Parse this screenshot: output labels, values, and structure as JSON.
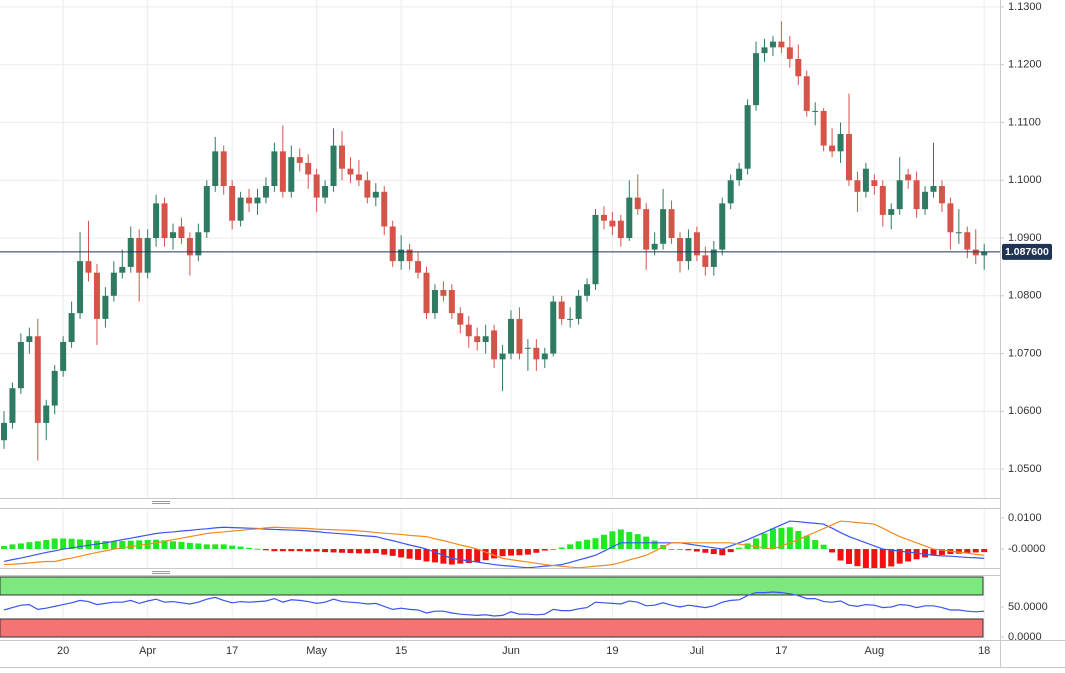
{
  "chart_data": [
    {
      "type": "candlestick",
      "categories": [
        null,
        null,
        null,
        null,
        null,
        null,
        null,
        "20",
        null,
        null,
        null,
        null,
        null,
        null,
        null,
        null,
        null,
        "Apr",
        null,
        null,
        null,
        null,
        null,
        null,
        null,
        null,
        null,
        "17",
        null,
        null,
        null,
        null,
        null,
        null,
        null,
        null,
        null,
        "May",
        null,
        null,
        null,
        null,
        null,
        null,
        null,
        null,
        null,
        "15",
        null,
        null,
        null,
        null,
        null,
        null,
        null,
        null,
        null,
        null,
        null,
        null,
        "Jun",
        null,
        null,
        null,
        null,
        null,
        null,
        null,
        null,
        null,
        null,
        null,
        "19",
        null,
        null,
        null,
        null,
        null,
        null,
        null,
        null,
        null,
        "Jul",
        null,
        null,
        null,
        null,
        null,
        null,
        null,
        null,
        null,
        "17",
        null,
        null,
        null,
        null,
        null,
        null,
        null,
        null,
        null,
        null,
        "Aug",
        null,
        null,
        null,
        null,
        null,
        null,
        null,
        null,
        null,
        null,
        null,
        null,
        "18"
      ],
      "open": [
        1.055,
        1.058,
        1.064,
        1.072,
        1.073,
        1.058,
        1.061,
        1.067,
        1.072,
        1.077,
        1.086,
        1.084,
        1.076,
        1.08,
        1.084,
        1.085,
        1.09,
        1.084,
        1.09,
        1.096,
        1.09,
        1.092,
        1.09,
        1.087,
        1.091,
        1.099,
        1.105,
        1.099,
        1.093,
        1.097,
        1.096,
        1.097,
        1.099,
        1.105,
        1.098,
        1.104,
        1.103,
        1.101,
        1.097,
        1.099,
        1.106,
        1.102,
        1.101,
        1.1,
        1.097,
        1.098,
        1.092,
        1.086,
        1.088,
        1.086,
        1.084,
        1.077,
        1.081,
        1.081,
        1.077,
        1.075,
        1.073,
        1.072,
        1.074,
        1.069,
        1.07,
        1.076,
        1.071,
        1.071,
        1.069,
        1.07,
        1.079,
        1.076,
        1.076,
        1.08,
        1.082,
        1.094,
        1.093,
        1.093,
        1.09,
        1.097,
        1.095,
        1.088,
        1.089,
        1.095,
        1.09,
        1.086,
        1.091,
        1.087,
        1.085,
        1.088,
        1.096,
        1.1,
        1.102,
        1.113,
        1.122,
        1.123,
        1.124,
        1.123,
        1.121,
        1.118,
        1.112,
        1.112,
        1.106,
        1.105,
        1.108,
        1.1,
        1.098,
        1.1,
        1.099,
        1.094,
        1.095,
        1.101,
        1.1,
        1.095,
        1.098,
        1.099,
        1.096,
        1.091,
        1.091,
        1.088,
        1.087
      ],
      "high": [
        1.06,
        1.065,
        1.0735,
        1.0745,
        1.076,
        1.062,
        1.068,
        1.073,
        1.079,
        1.091,
        1.093,
        1.0855,
        1.0815,
        1.086,
        1.088,
        1.092,
        1.0915,
        1.0915,
        1.0975,
        1.097,
        1.0925,
        1.0935,
        1.091,
        1.0925,
        1.1,
        1.1075,
        1.106,
        1.1,
        1.098,
        1.0985,
        1.0985,
        1.1005,
        1.1065,
        1.1095,
        1.106,
        1.1055,
        1.1045,
        1.102,
        1.1,
        1.109,
        1.1085,
        1.104,
        1.1035,
        1.1015,
        1.0995,
        1.099,
        1.093,
        1.0905,
        1.089,
        1.0875,
        1.085,
        1.082,
        1.0825,
        1.082,
        1.078,
        1.0765,
        1.0745,
        1.075,
        1.075,
        1.0715,
        1.0775,
        1.078,
        1.0725,
        1.0725,
        1.071,
        1.08,
        1.08,
        1.078,
        1.081,
        1.083,
        1.095,
        1.0955,
        1.0945,
        1.094,
        1.1,
        1.101,
        1.096,
        1.091,
        1.0985,
        1.0965,
        1.091,
        1.0915,
        1.092,
        1.0885,
        1.0895,
        1.097,
        1.101,
        1.103,
        1.114,
        1.124,
        1.1245,
        1.125,
        1.1275,
        1.125,
        1.1235,
        1.119,
        1.1135,
        1.1125,
        1.109,
        1.11,
        1.115,
        1.1015,
        1.103,
        1.101,
        1.1,
        1.096,
        1.104,
        1.102,
        1.1015,
        1.099,
        1.1065,
        1.1,
        1.097,
        1.095,
        1.092,
        1.0915,
        1.089
      ],
      "low": [
        1.0535,
        1.057,
        1.063,
        1.07,
        1.0515,
        1.055,
        1.0595,
        1.066,
        1.071,
        1.076,
        1.0825,
        1.0715,
        1.0745,
        1.079,
        1.083,
        1.084,
        1.079,
        1.083,
        1.0885,
        1.0885,
        1.088,
        1.089,
        1.0835,
        1.086,
        1.09,
        1.098,
        1.0975,
        1.0915,
        1.092,
        1.0945,
        1.094,
        1.096,
        1.098,
        1.097,
        1.097,
        1.1015,
        1.0985,
        1.0945,
        1.096,
        1.098,
        1.1,
        1.0995,
        1.099,
        1.096,
        1.0955,
        1.0905,
        1.085,
        1.0845,
        1.0845,
        1.083,
        1.076,
        1.076,
        1.079,
        1.076,
        1.0735,
        1.071,
        1.0705,
        1.07,
        1.0675,
        1.0635,
        1.069,
        1.069,
        1.067,
        1.067,
        1.0675,
        1.0695,
        1.075,
        1.0745,
        1.075,
        1.079,
        1.081,
        1.0915,
        1.0905,
        1.0885,
        1.0895,
        1.094,
        1.0845,
        1.087,
        1.088,
        1.089,
        1.084,
        1.0845,
        1.086,
        1.0835,
        1.0835,
        1.087,
        1.095,
        1.099,
        1.101,
        1.112,
        1.1205,
        1.1215,
        1.122,
        1.1195,
        1.1165,
        1.111,
        1.1095,
        1.105,
        1.104,
        1.103,
        1.099,
        1.0945,
        1.097,
        1.0975,
        1.092,
        1.0915,
        1.094,
        1.0985,
        1.0935,
        1.094,
        1.097,
        1.0945,
        1.088,
        1.089,
        1.0865,
        1.0855,
        1.0845
      ],
      "close": [
        1.058,
        1.064,
        1.072,
        1.073,
        1.058,
        1.061,
        1.067,
        1.072,
        1.077,
        1.086,
        1.084,
        1.076,
        1.08,
        1.084,
        1.085,
        1.09,
        1.084,
        1.09,
        1.096,
        1.09,
        1.091,
        1.09,
        1.087,
        1.091,
        1.099,
        1.105,
        1.099,
        1.093,
        1.097,
        1.096,
        1.097,
        1.099,
        1.105,
        1.098,
        1.104,
        1.103,
        1.101,
        1.097,
        1.099,
        1.106,
        1.102,
        1.101,
        1.1,
        1.097,
        1.098,
        1.092,
        1.086,
        1.088,
        1.086,
        1.084,
        1.077,
        1.081,
        1.08,
        1.077,
        1.075,
        1.073,
        1.072,
        1.073,
        1.069,
        1.07,
        1.076,
        1.07,
        1.071,
        1.069,
        1.07,
        1.079,
        1.076,
        1.076,
        1.08,
        1.082,
        1.094,
        1.093,
        1.092,
        1.09,
        1.097,
        1.095,
        1.088,
        1.089,
        1.095,
        1.09,
        1.086,
        1.09,
        1.087,
        1.085,
        1.088,
        1.096,
        1.1,
        1.102,
        1.113,
        1.122,
        1.123,
        1.124,
        1.123,
        1.121,
        1.118,
        1.112,
        1.112,
        1.106,
        1.105,
        1.108,
        1.1,
        1.098,
        1.102,
        1.099,
        1.094,
        1.095,
        1.1,
        1.1,
        1.095,
        1.098,
        1.099,
        1.096,
        1.091,
        1.091,
        1.088,
        1.087,
        1.0876
      ],
      "up_color": "#2e7a63",
      "down_color": "#d4544a",
      "ylim": [
        1.045,
        1.1312
      ],
      "yticks": [
        {
          "value": 1.13,
          "label": "1.1300"
        },
        {
          "value": 1.12,
          "label": "1.1200"
        },
        {
          "value": 1.11,
          "label": "1.1100"
        },
        {
          "value": 1.1,
          "label": "1.1000"
        },
        {
          "value": 1.09,
          "label": "1.0900"
        },
        {
          "value": 1.08,
          "label": "1.0800"
        },
        {
          "value": 1.07,
          "label": "1.0700"
        },
        {
          "value": 1.06,
          "label": "1.0600"
        },
        {
          "value": 1.05,
          "label": "1.0500"
        }
      ],
      "last_price": {
        "value": 1.0876,
        "label": "1.087600",
        "color": "#1f3354"
      },
      "grid": true
    },
    {
      "type": "macd",
      "lines": [
        {
          "color": "#3a55f0",
          "values": [
            -0.004,
            -0.0034,
            -0.0029,
            -0.0023,
            -0.0017,
            -0.0011,
            -0.0006,
            0.0,
            0.0004,
            0.0008,
            0.0012,
            0.0016,
            0.002,
            0.0025,
            0.003,
            0.0035,
            0.004,
            0.0045,
            0.005,
            0.0053,
            0.0055,
            0.0058,
            0.006,
            0.0063,
            0.0065,
            0.0068,
            0.007,
            0.0069,
            0.0068,
            0.0067,
            0.0066,
            0.0064,
            0.0063,
            0.0062,
            0.0061,
            0.006,
            0.0058,
            0.0056,
            0.0053,
            0.0051,
            0.0049,
            0.0047,
            0.0044,
            0.0042,
            0.004,
            0.0033,
            0.0027,
            0.002,
            0.0013,
            0.0007,
            0.0,
            -0.001,
            -0.002,
            -0.003,
            -0.0034,
            -0.0038,
            -0.0042,
            -0.0046,
            -0.005,
            -0.0053,
            -0.0055,
            -0.0058,
            -0.006,
            -0.0058,
            -0.0055,
            -0.0053,
            -0.005,
            -0.0043,
            -0.0035,
            -0.0028,
            -0.002,
            -0.0007,
            0.0007,
            0.002,
            0.002,
            0.002,
            0.002,
            0.002,
            0.002,
            0.002,
            0.002,
            0.0016,
            0.0012,
            0.0008,
            0.0004,
            0.0,
            0.001,
            0.002,
            0.003,
            0.0042,
            0.0054,
            0.0066,
            0.0078,
            0.009,
            0.0088,
            0.0085,
            0.0083,
            0.008,
            0.0067,
            0.0053,
            0.004,
            0.003,
            0.002,
            0.001,
            0.0,
            -0.0003,
            -0.0007,
            -0.001,
            -0.0013,
            -0.0017,
            -0.002,
            -0.0022,
            -0.0023,
            -0.0025,
            -0.0027,
            -0.0028,
            -0.003
          ]
        },
        {
          "color": "#f28a1e",
          "values": [
            -0.005,
            -0.0049,
            -0.0047,
            -0.0045,
            -0.0042,
            -0.004,
            -0.004,
            -0.0034,
            -0.0029,
            -0.0023,
            -0.0017,
            -0.0011,
            -0.0006,
            0.0,
            0.0004,
            0.0008,
            0.0012,
            0.0016,
            0.002,
            0.0025,
            0.003,
            0.0035,
            0.004,
            0.0045,
            0.005,
            0.0053,
            0.0055,
            0.0058,
            0.006,
            0.0063,
            0.0065,
            0.0068,
            0.007,
            0.0069,
            0.0068,
            0.0067,
            0.0066,
            0.0064,
            0.0063,
            0.0062,
            0.0061,
            0.006,
            0.0058,
            0.0056,
            0.0053,
            0.0051,
            0.0049,
            0.0047,
            0.0044,
            0.0042,
            0.004,
            0.0033,
            0.0027,
            0.002,
            0.0013,
            0.0007,
            0.0,
            -0.001,
            -0.002,
            -0.003,
            -0.0034,
            -0.0038,
            -0.0042,
            -0.0046,
            -0.005,
            -0.0053,
            -0.0055,
            -0.0058,
            -0.006,
            -0.0058,
            -0.0055,
            -0.0053,
            -0.005,
            -0.0043,
            -0.0035,
            -0.0028,
            -0.002,
            -0.0007,
            0.0007,
            0.002,
            0.002,
            0.002,
            0.002,
            0.002,
            0.002,
            0.002,
            0.002,
            0.0016,
            0.0012,
            0.0008,
            0.0004,
            0.0,
            0.001,
            0.002,
            0.003,
            0.0042,
            0.0054,
            0.0066,
            0.0078,
            0.009,
            0.0088,
            0.0085,
            0.0083,
            0.008,
            0.0067,
            0.0053,
            0.004,
            0.003,
            0.002,
            0.001,
            0.0,
            -0.0003,
            -0.0007,
            -0.001,
            -0.0013,
            -0.0017,
            -0.002
          ]
        }
      ],
      "histogram": {
        "up_color": "#22e822",
        "down_color": "#f01010",
        "values": [
          0.001,
          0.0015,
          0.0018,
          0.0022,
          0.0025,
          0.0029,
          0.0034,
          0.0034,
          0.0033,
          0.0031,
          0.0029,
          0.0027,
          0.0026,
          0.0025,
          0.0026,
          0.0027,
          0.0028,
          0.0029,
          0.003,
          0.0028,
          0.0025,
          0.0023,
          0.002,
          0.0018,
          0.0015,
          0.0015,
          0.0015,
          0.0011,
          0.0008,
          0.0004,
          0.0001,
          -0.0004,
          -0.0007,
          -0.0007,
          -0.0007,
          -0.0007,
          -0.0008,
          -0.0008,
          -0.001,
          -0.0011,
          -0.0012,
          -0.0013,
          -0.0014,
          -0.0014,
          -0.0013,
          -0.0018,
          -0.0022,
          -0.0027,
          -0.0031,
          -0.0035,
          -0.004,
          -0.0043,
          -0.0047,
          -0.005,
          -0.0047,
          -0.0045,
          -0.0042,
          -0.0036,
          -0.003,
          -0.0023,
          -0.0021,
          -0.002,
          -0.0018,
          -0.0012,
          -0.0005,
          0.0,
          0.0005,
          0.0015,
          0.0025,
          0.003,
          0.0035,
          0.0046,
          0.0057,
          0.0063,
          0.0055,
          0.0048,
          0.004,
          0.0027,
          0.0013,
          0.0,
          0.0,
          -0.0004,
          -0.0008,
          -0.0012,
          -0.0016,
          -0.002,
          -0.001,
          0.0004,
          0.0018,
          0.0034,
          0.005,
          0.0066,
          0.0068,
          0.007,
          0.0058,
          0.0043,
          0.0029,
          0.0014,
          -0.0011,
          -0.0037,
          -0.0048,
          -0.0055,
          -0.0063,
          -0.007,
          -0.0067,
          -0.0056,
          -0.0047,
          -0.004,
          -0.0033,
          -0.0027,
          -0.002,
          -0.0019,
          -0.0016,
          -0.0015,
          -0.0014,
          -0.0011,
          -0.001
        ]
      },
      "ylim": [
        -0.0061,
        0.0132
      ],
      "yticks": [
        {
          "value": 0.01,
          "label": "0.0100"
        },
        {
          "value": 0,
          "label": "-0.0000"
        }
      ]
    },
    {
      "type": "rsi",
      "color": "#3a55f0",
      "values": [
        45,
        49,
        53,
        54,
        46,
        48,
        51,
        54,
        57,
        61,
        59,
        54,
        56,
        58,
        58,
        61,
        56,
        60,
        63,
        58,
        59,
        57,
        55,
        58,
        63,
        66,
        61,
        57,
        59,
        58,
        59,
        60,
        64,
        58,
        62,
        61,
        59,
        56,
        58,
        63,
        59,
        58,
        57,
        55,
        56,
        51,
        46,
        48,
        46,
        45,
        40,
        43,
        43,
        40,
        38,
        37,
        36,
        37,
        35,
        36,
        42,
        38,
        38,
        37,
        38,
        46,
        44,
        44,
        47,
        49,
        58,
        57,
        56,
        55,
        60,
        58,
        52,
        53,
        57,
        53,
        50,
        53,
        51,
        49,
        52,
        58,
        61,
        62,
        69,
        74,
        74,
        75,
        74,
        72,
        69,
        64,
        64,
        59,
        58,
        60,
        53,
        51,
        54,
        53,
        49,
        50,
        54,
        53,
        49,
        52,
        52,
        49,
        45,
        45,
        43,
        42,
        43
      ],
      "bands": [
        {
          "range": [
            70,
            100
          ],
          "color": "#7de87d"
        },
        {
          "range": [
            0,
            30
          ],
          "color": "#f47474"
        }
      ],
      "ylim": [
        -5,
        103.3
      ],
      "yticks": [
        {
          "value": 50,
          "label": "50.0000"
        },
        {
          "value": 0,
          "label": "0.0000"
        }
      ]
    }
  ]
}
